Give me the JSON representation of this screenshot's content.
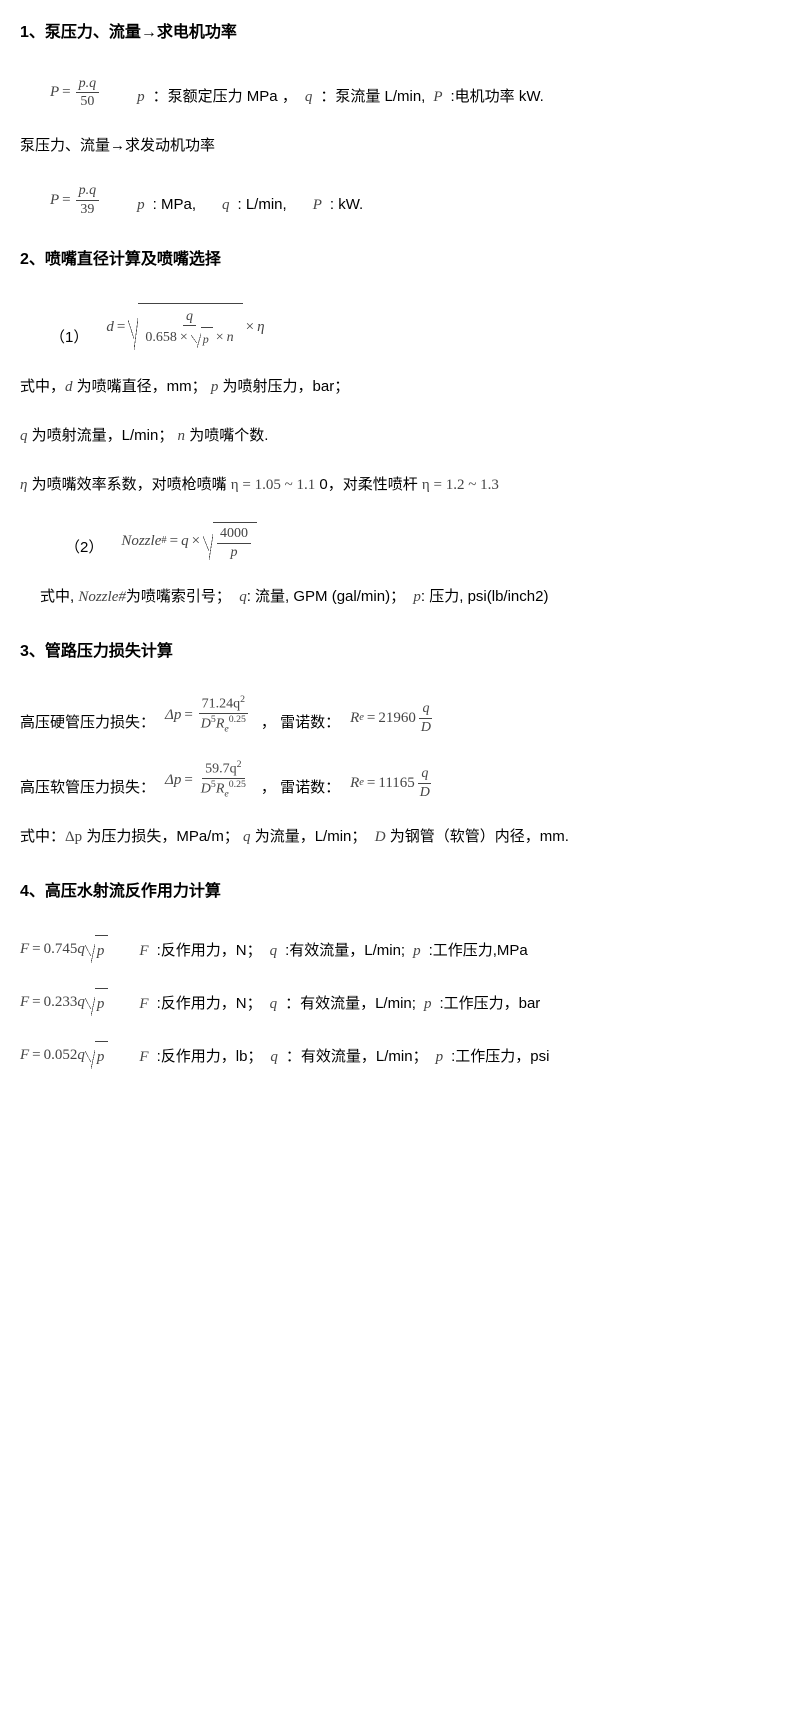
{
  "s1": {
    "heading": "1、泵压力、流量→求电机功率",
    "f1": {
      "lhs": "P",
      "num": "p.q",
      "den": "50"
    },
    "f1desc": {
      "p": "p",
      "ptxt": "：泵额定压力 MPa ，",
      "q": "q",
      "qtxt": "：泵流量 L/min,",
      "P": "P",
      "Ptxt": ":电机功率 kW."
    },
    "sub2": "泵压力、流量→求发动机功率",
    "f2": {
      "lhs": "P",
      "num": "p.q",
      "den": "39"
    },
    "f2desc": {
      "p": "p",
      "ptxt": ": MPa,",
      "q": "q",
      "qtxt": ": L/min,",
      "P": "P",
      "Ptxt": ": kW."
    }
  },
  "s2": {
    "heading": "2、喷嘴直径计算及喷嘴选择",
    "f1tag": "（1）",
    "f1": {
      "lhs": "d",
      "num": "q",
      "den_a": "0.658",
      "den_b": "p",
      "den_c": "n",
      "tail": "η"
    },
    "line1a": "式中，",
    "d": "d",
    "line1b": " 为喷嘴直径，mm；",
    "p": "p",
    "line1c": " 为喷射压力，bar；",
    "q": "q",
    "line2a": " 为喷射流量，L/min；",
    "n": "n",
    "line2b": " 为喷嘴个数.",
    "eta": "η",
    "line3a": " 为喷嘴效率系数，对喷枪喷嘴 ",
    "etarange1": "η = 1.05 ~ 1.1",
    "line3b": " 0，对柔性喷杆 ",
    "etarange2": "η = 1.2 ~ 1.3",
    "f2tag": "（2）",
    "f2": {
      "lhs": "Nozzle",
      "sup": "#",
      "q": "q",
      "num": "4000",
      "den": "p"
    },
    "line4": "式中, ",
    "nz": "Nozzle#",
    "line4a": "为喷嘴索引号；",
    "qv": "q",
    "line4b": ": 流量, GPM (gal/min)；",
    "pv": "p",
    "line4c": ": 压力, psi(lb/inch2)"
  },
  "s3": {
    "heading": "3、管路压力损失计算",
    "r1label": "高压硬管压力损失：",
    "r1": {
      "num": "71.24q",
      "numsup": "2",
      "den": "D",
      "densupa": "5",
      "denR": "R",
      "denRsub": "e",
      "denRsup": "0.25"
    },
    "reylabel": "，  雷诺数：",
    "r1re": {
      "lhs": "R",
      "sub": "e",
      "val": "21960",
      "num": "q",
      "den": "D"
    },
    "r2label": "高压软管压力损失：",
    "r2": {
      "num": "59.7q",
      "numsup": "2",
      "den": "D",
      "densupa": "5",
      "denR": "R",
      "denRsub": "e",
      "denRsup": "0.25"
    },
    "r2re": {
      "lhs": "R",
      "sub": "e",
      "val": "11165",
      "num": "q",
      "den": "D"
    },
    "line1a": "式中：",
    "dp": "Δp",
    "line1b": " 为压力损失，MPa/m；",
    "q": "q",
    "line1c": " 为流量，L/min；",
    "D": "D",
    "line1d": " 为钢管（软管）内径，mm."
  },
  "s4": {
    "heading": "4、高压水射流反作用力计算",
    "rows": [
      {
        "coef": "0.745",
        "F": "F",
        "Ftxt": ":反作用力，N；",
        "q": "q",
        "qtxt": ":有效流量，L/min;",
        "p": "p",
        "ptxt": ":工作压力,MPa"
      },
      {
        "coef": "0.233",
        "F": "F",
        "Ftxt": ":反作用力，N；",
        "q": "q",
        "qtxt": "：有效流量，L/min;",
        "p": "p",
        "ptxt": ":工作压力，bar"
      },
      {
        "coef": "0.052",
        "F": "F",
        "Ftxt": ":反作用力，lb；",
        "q": "q",
        "qtxt": "：有效流量，L/min；",
        "p": "p",
        "ptxt": ":工作压力，psi"
      }
    ]
  }
}
